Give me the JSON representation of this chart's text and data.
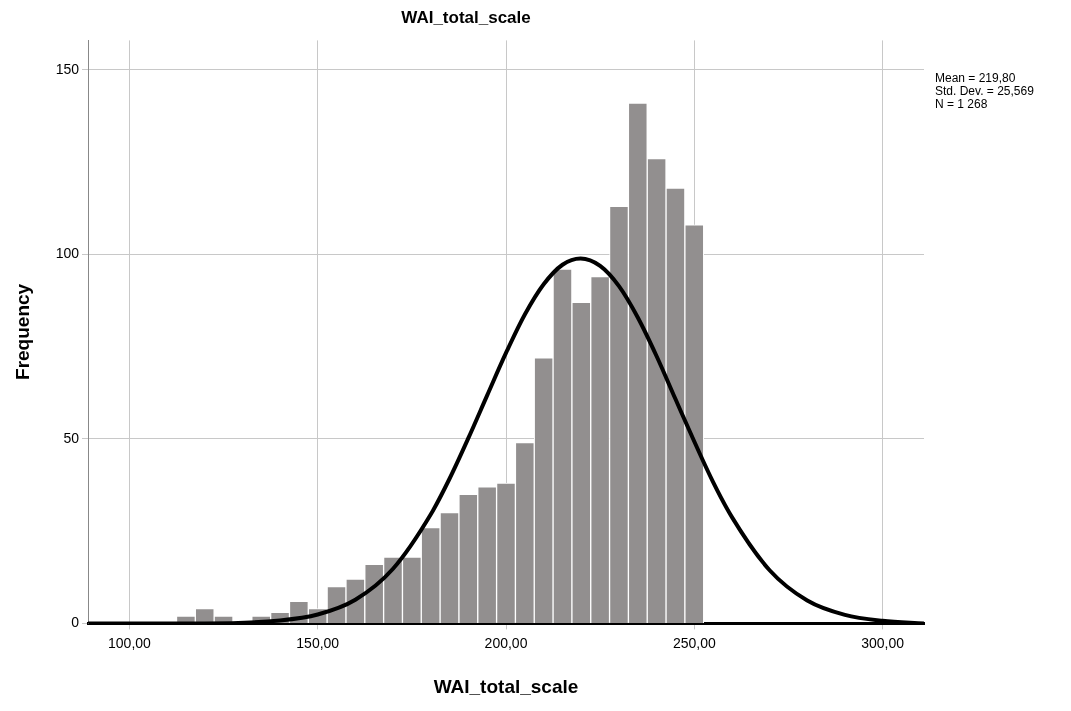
{
  "chart_data": {
    "type": "histogram",
    "title": "WAI_total_scale",
    "xlabel": "WAI_total_scale",
    "ylabel": "Frequency",
    "bins": [
      112.5,
      117.5,
      122.5,
      127.5,
      132.5,
      137.5,
      142.5,
      147.5,
      152.5,
      157.5,
      162.5,
      167.5,
      172.5,
      177.5,
      182.5,
      187.5,
      192.5,
      197.5,
      202.5,
      207.5,
      212.5,
      217.5,
      222.5,
      227.5,
      232.5,
      237.5,
      242.5,
      247.5,
      252.5
    ],
    "values": [
      2,
      4,
      2,
      0,
      2,
      3,
      6,
      4,
      10,
      12,
      16,
      18,
      18,
      26,
      30,
      35,
      37,
      38,
      49,
      72,
      96,
      87,
      94,
      113,
      141,
      126,
      118,
      108
    ],
    "color": "#928f8f",
    "series": [
      {
        "type": "line",
        "color": "#000000",
        "x": [
          89,
          100,
          120,
          140,
          150,
          160,
          170,
          180,
          185,
          190,
          195,
          200,
          205,
          210,
          215,
          219.8,
          225,
          230,
          235,
          240,
          245,
          250,
          255,
          260,
          270,
          280,
          290,
          300,
          311
        ],
        "values": [
          0,
          0,
          0,
          0.8,
          2.4,
          6.4,
          14.8,
          29.5,
          39.2,
          50.2,
          61.8,
          73.3,
          83.7,
          91.9,
          97.2,
          98.9,
          96.9,
          91.4,
          82.9,
          72.4,
          60.8,
          49.3,
          38.3,
          28.8,
          14.4,
          6.2,
          2.3,
          0.7,
          0
        ]
      }
    ],
    "xlim": [
      89,
      311
    ],
    "xticks": [
      {
        "value": 100,
        "label": "100,00"
      },
      {
        "value": 150,
        "label": "150,00"
      },
      {
        "value": 200,
        "label": "200,00"
      },
      {
        "value": 250,
        "label": "250,00"
      },
      {
        "value": 300,
        "label": "300,00"
      }
    ],
    "ylim": [
      0,
      158
    ],
    "yticks": [
      0,
      50,
      100,
      150
    ],
    "grid": true,
    "legend": false,
    "marker": "none",
    "line_style": "solid",
    "annotations": [
      "Mean = 219,80",
      "Std. Dev. = 25,569",
      "N = 1 268"
    ]
  }
}
